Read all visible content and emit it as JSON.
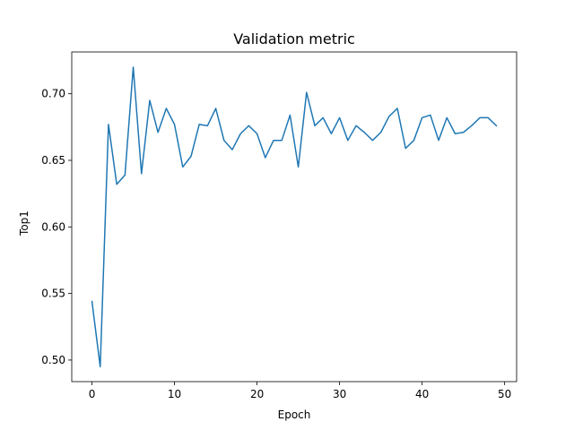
{
  "chart_data": {
    "type": "line",
    "title": "Validation metric",
    "xlabel": "Epoch",
    "ylabel": "Top1",
    "xlim": [
      -2.45,
      51.45
    ],
    "ylim": [
      0.4838,
      0.7314
    ],
    "xticks": [
      0,
      10,
      20,
      30,
      40,
      50
    ],
    "yticks": [
      0.5,
      0.55,
      0.6,
      0.65,
      0.7
    ],
    "ytick_labels": [
      "0.50",
      "0.55",
      "0.60",
      "0.65",
      "0.70"
    ],
    "grid": false,
    "line_color": "#1f77b4",
    "x": [
      0,
      1,
      2,
      3,
      4,
      5,
      6,
      7,
      8,
      9,
      10,
      11,
      12,
      13,
      14,
      15,
      16,
      17,
      18,
      19,
      20,
      21,
      22,
      23,
      24,
      25,
      26,
      27,
      28,
      29,
      30,
      31,
      32,
      33,
      34,
      35,
      36,
      37,
      38,
      39,
      40,
      41,
      42,
      43,
      44,
      45,
      46,
      47,
      48,
      49
    ],
    "series": [
      {
        "values": [
          0.544,
          0.495,
          0.677,
          0.632,
          0.639,
          0.72,
          0.64,
          0.695,
          0.671,
          0.689,
          0.677,
          0.645,
          0.653,
          0.677,
          0.676,
          0.689,
          0.665,
          0.658,
          0.67,
          0.676,
          0.67,
          0.652,
          0.665,
          0.665,
          0.684,
          0.645,
          0.701,
          0.676,
          0.682,
          0.67,
          0.682,
          0.665,
          0.676,
          0.671,
          0.665,
          0.671,
          0.683,
          0.689,
          0.659,
          0.665,
          0.682,
          0.684,
          0.665,
          0.682,
          0.67,
          0.671,
          0.676,
          0.682,
          0.682,
          0.676
        ]
      }
    ]
  }
}
